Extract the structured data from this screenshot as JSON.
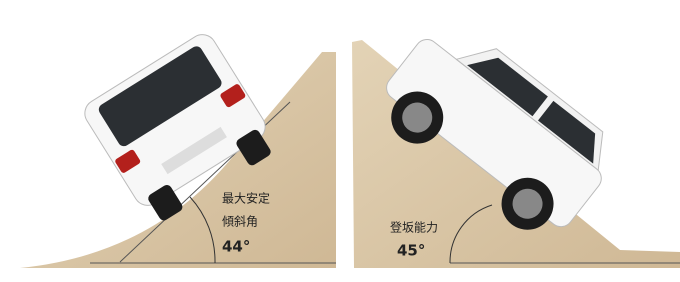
{
  "left_panel": {
    "label_lines": [
      "最大安定",
      "傾斜角"
    ],
    "angle": "44°"
  },
  "right_panel": {
    "label": "登坂能力",
    "angle": "45°"
  }
}
